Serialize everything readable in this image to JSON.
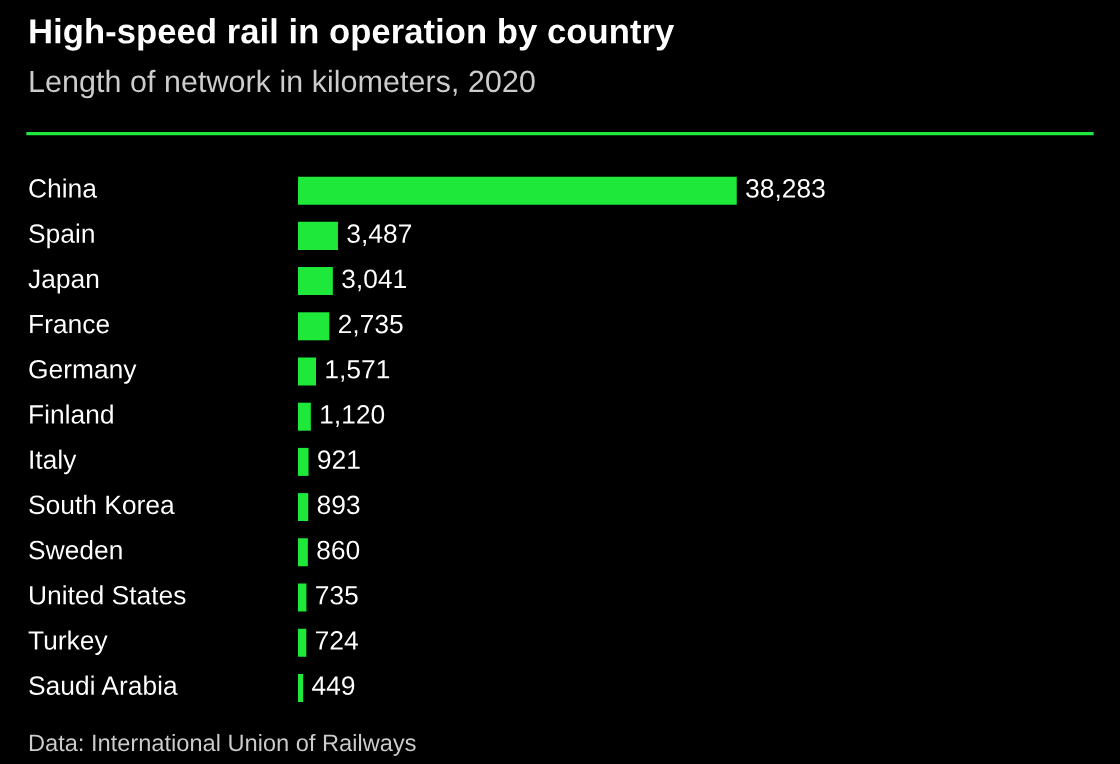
{
  "chart_data": {
    "type": "bar",
    "orientation": "horizontal",
    "title": "High-speed rail in operation by country",
    "subtitle": "Length of network in kilometers, 2020",
    "categories": [
      "China",
      "Spain",
      "Japan",
      "France",
      "Germany",
      "Finland",
      "Italy",
      "South Korea",
      "Sweden",
      "United States",
      "Turkey",
      "Saudi Arabia"
    ],
    "values": [
      38283,
      3487,
      3041,
      2735,
      1571,
      1120,
      921,
      893,
      860,
      735,
      724,
      449
    ],
    "value_labels": [
      "38,283",
      "3,487",
      "3,041",
      "2,735",
      "1,571",
      "1,120",
      "921",
      "893",
      "860",
      "735",
      "724",
      "449"
    ],
    "color": "#1ee83a",
    "annotations": [
      "Data: International Union of Railways"
    ]
  }
}
